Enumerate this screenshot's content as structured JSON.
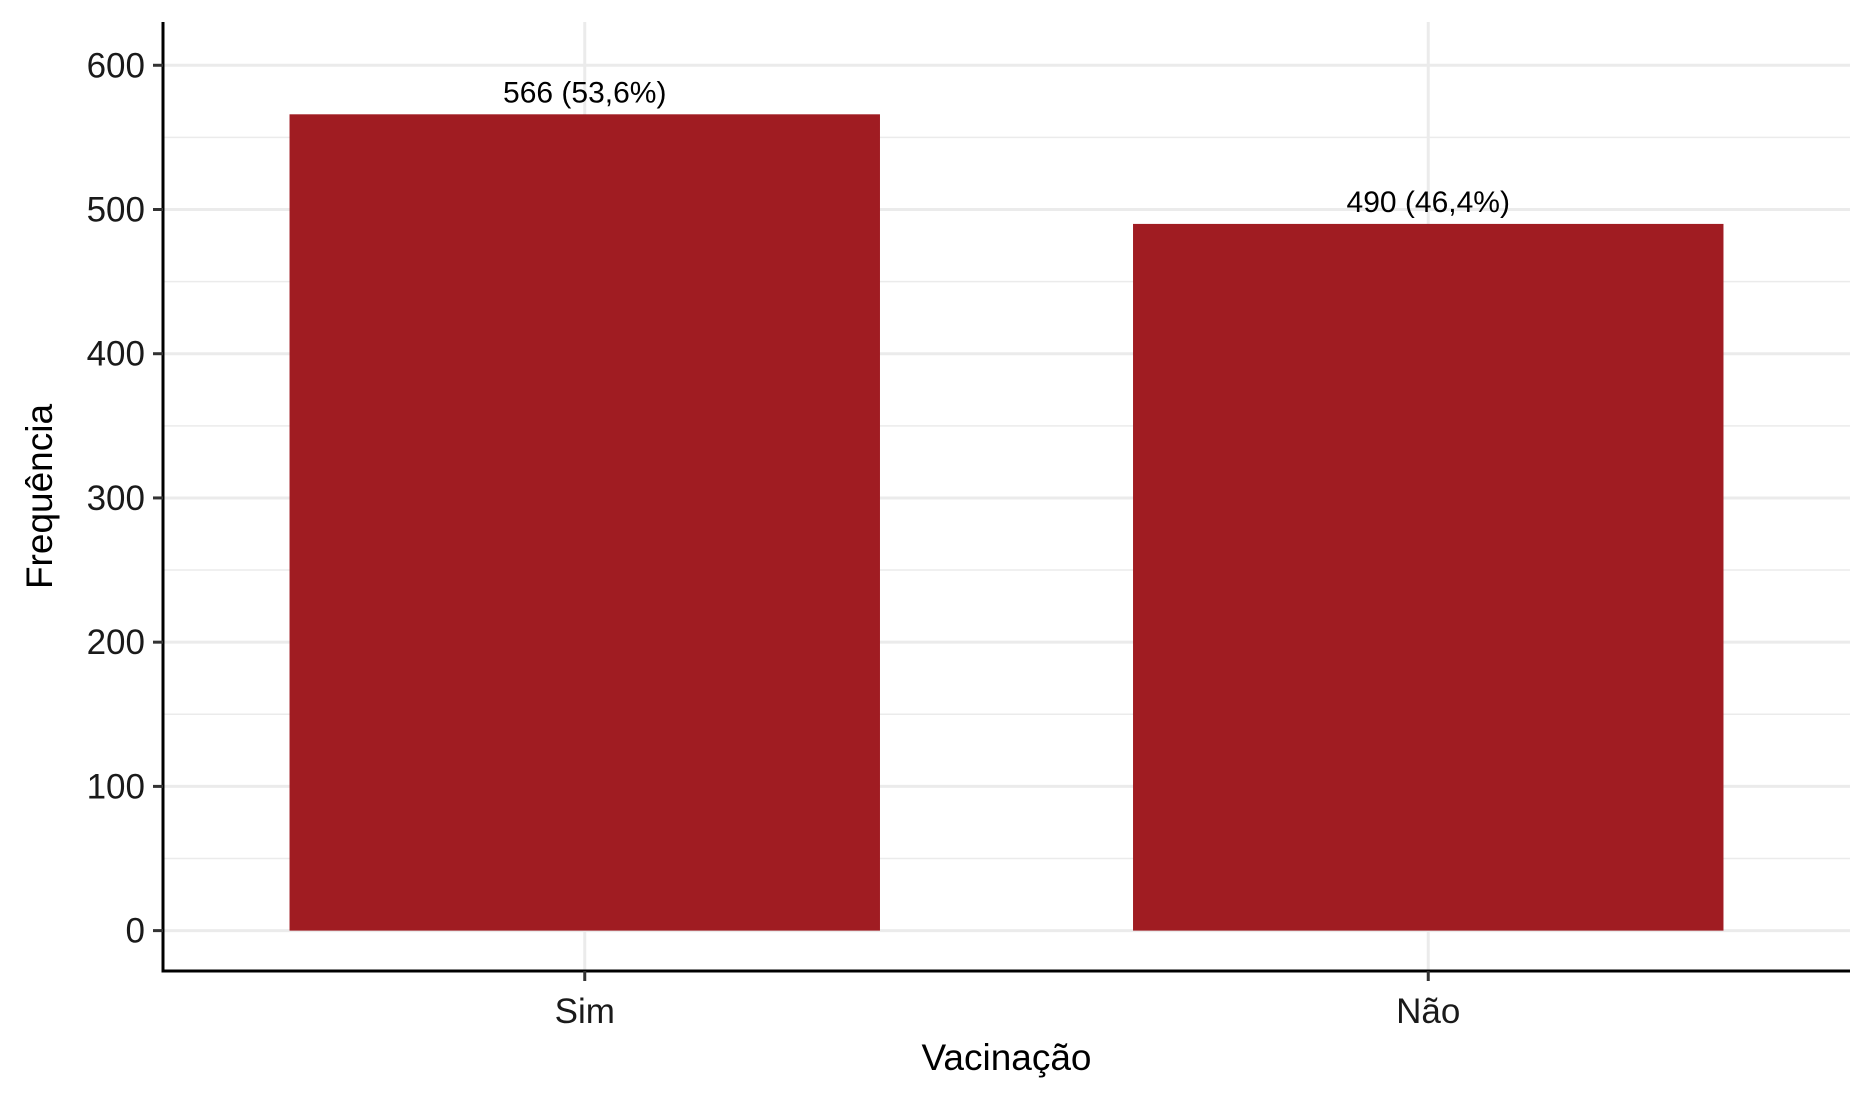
{
  "chart_data": {
    "type": "bar",
    "categories": [
      "Sim",
      "Não"
    ],
    "values": [
      566,
      490
    ],
    "data_labels": [
      "566 (53,6%)",
      "490 (46,4%)"
    ],
    "xlabel": "Vacinação",
    "ylabel": "Frequência",
    "ylim": [
      -28,
      630
    ],
    "yticks": [
      0,
      100,
      200,
      300,
      400,
      500,
      600
    ],
    "ytick_labels": [
      "0",
      "100",
      "200",
      "300",
      "400",
      "500",
      "600"
    ],
    "grid": true,
    "legend": "none",
    "bar_color": "#A01C22",
    "grid_color": "#EBEBEB"
  }
}
